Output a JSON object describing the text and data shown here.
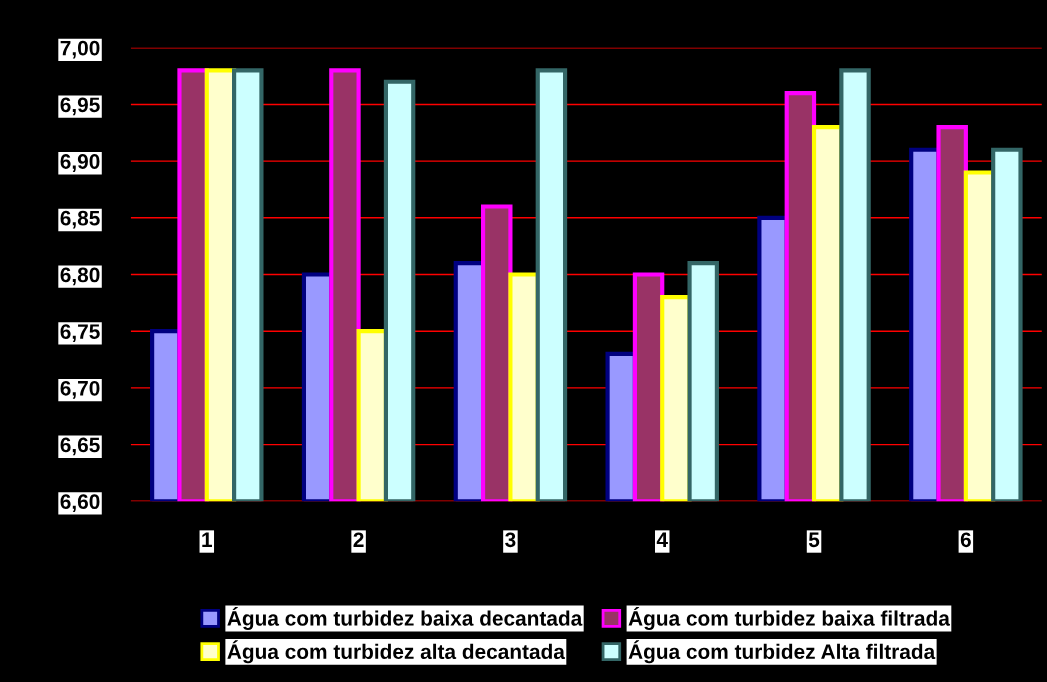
{
  "chart_data": {
    "type": "bar",
    "categories": [
      "1",
      "2",
      "3",
      "4",
      "5",
      "6"
    ],
    "series": [
      {
        "name": "Água com turbidez baixa decantada",
        "color": "#9999ff",
        "values": [
          6.75,
          6.8,
          6.81,
          6.73,
          6.85,
          6.91
        ]
      },
      {
        "name": "Água com turbidez baixa filtrada",
        "color": "#993366",
        "values": [
          6.98,
          6.98,
          6.86,
          6.8,
          6.96,
          6.93
        ]
      },
      {
        "name": "Água com turbidez alta decantada",
        "color": "#ffffcc",
        "values": [
          6.98,
          6.75,
          6.8,
          6.78,
          6.93,
          6.89
        ]
      },
      {
        "name": "Água com turbidez Alta filtrada",
        "color": "#ccffff",
        "values": [
          6.98,
          6.97,
          6.98,
          6.81,
          6.98,
          6.91
        ]
      }
    ],
    "ylim": [
      6.6,
      7.0
    ],
    "yticks": [
      {
        "value": 6.6,
        "label": "6,60"
      },
      {
        "value": 6.65,
        "label": "6,65"
      },
      {
        "value": 6.7,
        "label": "6,70"
      },
      {
        "value": 6.75,
        "label": "6,75"
      },
      {
        "value": 6.8,
        "label": "6,80"
      },
      {
        "value": 6.85,
        "label": "6,85"
      },
      {
        "value": 6.9,
        "label": "6,90"
      },
      {
        "value": 6.95,
        "label": "6,95"
      },
      {
        "value": 7.0,
        "label": "7,00"
      }
    ],
    "grid": "y",
    "legend": "bottom"
  }
}
